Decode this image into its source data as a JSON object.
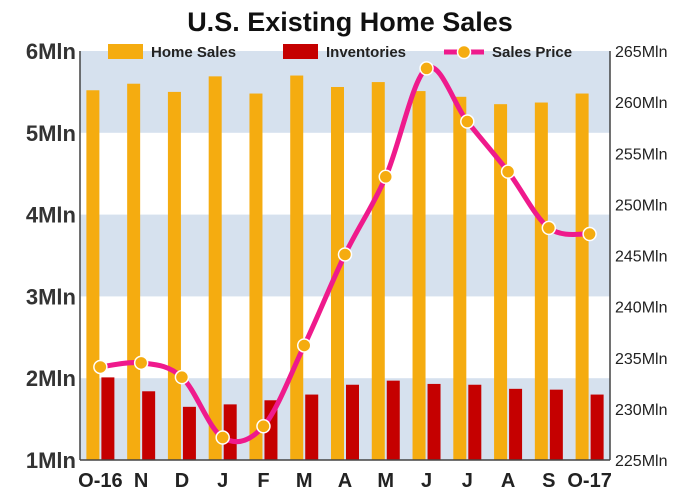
{
  "chart_data": {
    "type": "bar",
    "title": "U.S. Existing Home Sales",
    "categories": [
      "O-16",
      "N",
      "D",
      "J",
      "F",
      "M",
      "A",
      "M",
      "J",
      "J",
      "A",
      "S",
      "O-17"
    ],
    "series": [
      {
        "name": "Home Sales",
        "type": "bar",
        "axis": "left",
        "color": "#f5ac10",
        "values": [
          5.52,
          5.6,
          5.5,
          5.69,
          5.48,
          5.7,
          5.56,
          5.62,
          5.51,
          5.44,
          5.35,
          5.37,
          5.48
        ]
      },
      {
        "name": "Inventories",
        "type": "bar",
        "axis": "left",
        "color": "#c50000",
        "values": [
          2.01,
          1.84,
          1.65,
          1.68,
          1.73,
          1.8,
          1.92,
          1.97,
          1.93,
          1.92,
          1.87,
          1.86,
          1.8
        ]
      },
      {
        "name": "Sales Price",
        "type": "line",
        "axis": "right",
        "color": "#ef1a8c",
        "marker_color": "#f5ac10",
        "values": [
          234.1,
          234.5,
          233.1,
          227.2,
          228.3,
          236.2,
          245.1,
          252.7,
          263.3,
          258.1,
          253.2,
          247.7,
          247.1
        ]
      }
    ],
    "y_left": {
      "ylim": [
        1,
        6
      ],
      "ticks": [
        1,
        2,
        3,
        4,
        5,
        6
      ],
      "tick_labels": [
        "1Mln",
        "2Mln",
        "3Mln",
        "4Mln",
        "5Mln",
        "6Mln"
      ]
    },
    "y_right": {
      "ylim": [
        225,
        265
      ],
      "ticks": [
        225,
        230,
        235,
        240,
        245,
        250,
        255,
        260,
        265
      ],
      "tick_labels": [
        "225Mln",
        "230Mln",
        "235Mln",
        "240Mln",
        "245Mln",
        "250Mln",
        "255Mln",
        "260Mln",
        "265Mln"
      ]
    },
    "band_color": "#d6e1ee",
    "legend": {
      "position": "top",
      "labels": [
        "Home Sales",
        "Inventories",
        "Sales Price"
      ]
    }
  }
}
